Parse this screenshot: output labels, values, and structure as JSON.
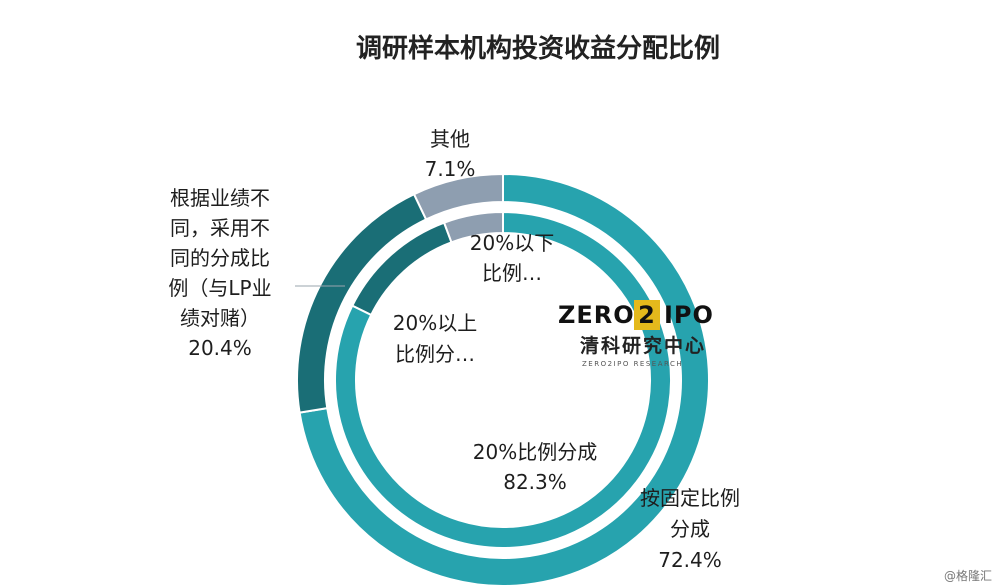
{
  "chart_data": {
    "type": "pie",
    "title": "调研样本机构投资收益分配比例",
    "rings": [
      {
        "ring": "outer",
        "slices": [
          {
            "label_lines": [
              "按固定比例",
              "分成"
            ],
            "value_text": "72.4%",
            "value": 72.4,
            "color": "#27A3AE"
          },
          {
            "label_lines": [
              "根据业绩不",
              "同，采用不",
              "同的分成比",
              "例（与LP业",
              "绩对赌）"
            ],
            "value_text": "20.4%",
            "value": 20.4,
            "color": "#1A6E76"
          },
          {
            "label_lines": [
              "其他"
            ],
            "value_text": "7.1%",
            "value": 7.1,
            "color": "#8E9EB0"
          }
        ]
      },
      {
        "ring": "inner",
        "slices": [
          {
            "label_lines": [
              "20%比例分成"
            ],
            "value_text": "82.3%",
            "value": 82.3,
            "color": "#27A3AE"
          },
          {
            "label_lines": [
              "20%以上",
              "比例分…"
            ],
            "value_text": "",
            "value": 12.0,
            "color": "#1A6E76"
          },
          {
            "label_lines": [
              "20%以下",
              "比例…"
            ],
            "value_text": "",
            "value": 5.7,
            "color": "#8E9EB0"
          }
        ]
      }
    ]
  },
  "logo": {
    "name_left": "ZERO",
    "name_mid": "2",
    "name_right": "IPO",
    "name_cn": "清科研究中心",
    "name_sub": "ZERO2IPO RESEARCH"
  },
  "watermark": "@格隆汇"
}
